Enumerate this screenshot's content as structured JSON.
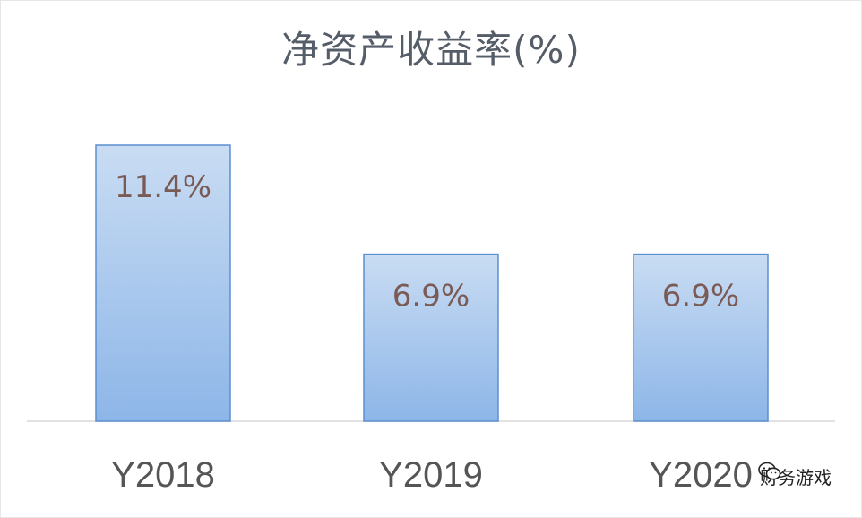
{
  "chart_data": {
    "type": "bar",
    "title": "净资产收益率(%)",
    "categories": [
      "Y2018",
      "Y2019",
      "Y2020"
    ],
    "values": [
      11.4,
      6.9,
      6.9
    ],
    "data_labels": [
      "11.4%",
      "6.9%",
      "6.9%"
    ],
    "ylim": [
      0,
      12.4
    ],
    "grid": false,
    "legend": "none",
    "colors": {
      "bar_fill_top": "#c9dcf3",
      "bar_fill_bottom": "#8db6e8",
      "bar_border": "#5b8fcf"
    }
  },
  "watermark": {
    "text": "财务游戏",
    "icon": "wechat-icon"
  }
}
